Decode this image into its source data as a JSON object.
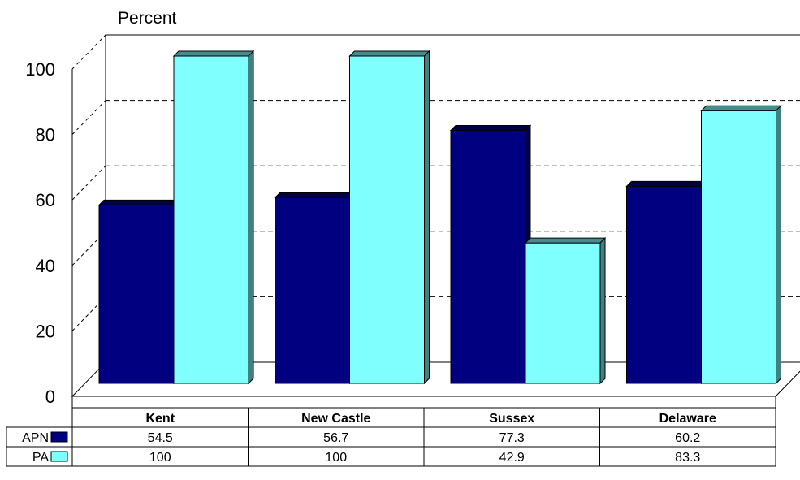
{
  "chart_data": {
    "type": "bar",
    "ylabel": "Percent",
    "ylim": [
      0,
      100
    ],
    "yticks": [
      "0",
      "20",
      "40",
      "60",
      "80",
      "100"
    ],
    "categories": [
      "Kent",
      "New Castle",
      "Sussex",
      "Delaware"
    ],
    "series": [
      {
        "name": "APN",
        "color": "#000080",
        "values": [
          54.5,
          56.7,
          77.3,
          60.2
        ],
        "labels": [
          "54.5",
          "56.7",
          "77.3",
          "60.2"
        ]
      },
      {
        "name": "PA",
        "color": "#80FFFF",
        "values": [
          100,
          100,
          42.9,
          83.3
        ],
        "labels": [
          "100",
          "100",
          "42.9",
          "83.3"
        ]
      }
    ],
    "grid": true,
    "legend": "data table with legend keys at bottom-left"
  }
}
